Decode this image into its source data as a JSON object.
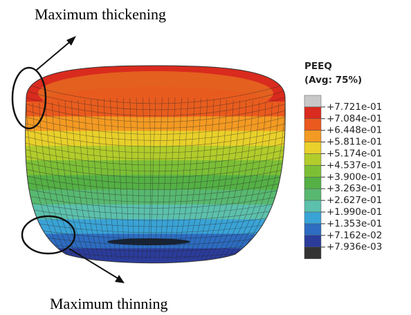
{
  "annotations": {
    "top": "Maximum thickening",
    "bottom": "Maximum thinning"
  },
  "legend": {
    "title": "PEEQ",
    "subtitle": "(Avg: 75%)",
    "labels": [
      "+7.721e-01",
      "+7.084e-01",
      "+6.448e-01",
      "+5.811e-01",
      "+5.174e-01",
      "+4.537e-01",
      "+3.900e-01",
      "+3.263e-01",
      "+2.627e-01",
      "+1.990e-01",
      "+1.353e-01",
      "+7.162e-02",
      "+7.936e-03"
    ],
    "colors": [
      "#c8c8c8",
      "#d92b1e",
      "#ea5a1e",
      "#f39a22",
      "#e9d02a",
      "#b2cc2b",
      "#7cbf36",
      "#55b045",
      "#58b870",
      "#5cc0ac",
      "#3aa3d6",
      "#2d6cc0",
      "#2b3c9a",
      "#333333"
    ]
  }
}
